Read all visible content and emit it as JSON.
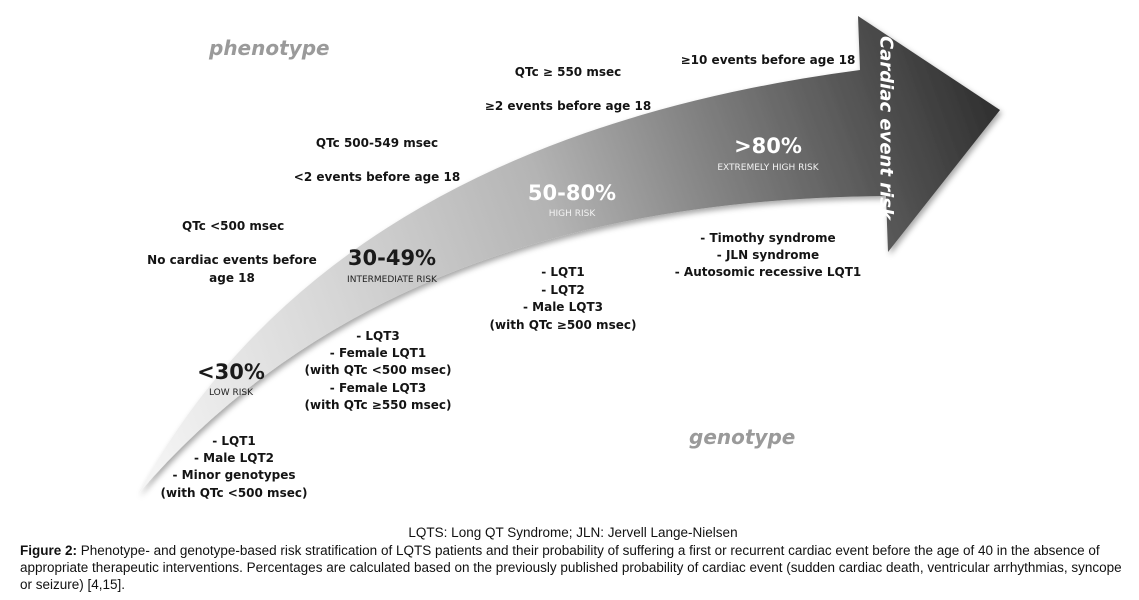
{
  "labels": {
    "phenotype": "phenotype",
    "genotype": "genotype",
    "axis": "Cardiac event risk"
  },
  "levels": [
    {
      "percent": "<30%",
      "risk": "LOW RISK",
      "phenotype": [
        "QTc <500 msec",
        "No cardiac events before",
        "age 18"
      ],
      "genotype": [
        "- LQT1",
        "- Male LQT2",
        "- Minor genotypes",
        "(with QTc <500 msec)"
      ]
    },
    {
      "percent": "30-49%",
      "risk": "INTERMEDIATE  RISK",
      "phenotype": [
        "QTc  500-549 msec",
        "<2 events before age 18"
      ],
      "genotype": [
        "- LQT3",
        "- Female LQT1",
        "(with QTc  <500 msec)",
        "- Female LQT3",
        "(with QTc ≥550 msec)"
      ]
    },
    {
      "percent": "50-80%",
      "risk": "HIGH  RISK",
      "phenotype": [
        "QTc ≥ 550 msec",
        "≥2 events before age 18"
      ],
      "genotype": [
        "- LQT1",
        "- LQT2",
        "- Male LQT3",
        "(with QTc ≥500 msec)"
      ]
    },
    {
      "percent": ">80%",
      "risk": "EXTREMELY  HIGH  RISK",
      "phenotype": [
        "≥10 events before age 18"
      ],
      "genotype": [
        "- Timothy syndrome",
        "- JLN syndrome",
        "- Autosomic recessive LQT1"
      ]
    }
  ],
  "legend": "LQTS: Long QT Syndrome; JLN: Jervell Lange-Nielsen",
  "caption": {
    "label": "Figure 2:",
    "text": " Phenotype- and genotype-based risk stratification of LQTS patients and their probability of suffering a first or recurrent cardiac event before the age of 40 in the absence of appropriate therapeutic interventions. Percentages are calculated based on the previously published probability of cardiac event (sudden cardiac death, ventricular arrhythmias, syncope or seizure) [4,15]."
  },
  "colors": {
    "arrow_start": "#f2f2f2",
    "arrow_mid": "#b8b8b8",
    "arrow_end": "#333333",
    "watermark": "#9a9a9a"
  }
}
